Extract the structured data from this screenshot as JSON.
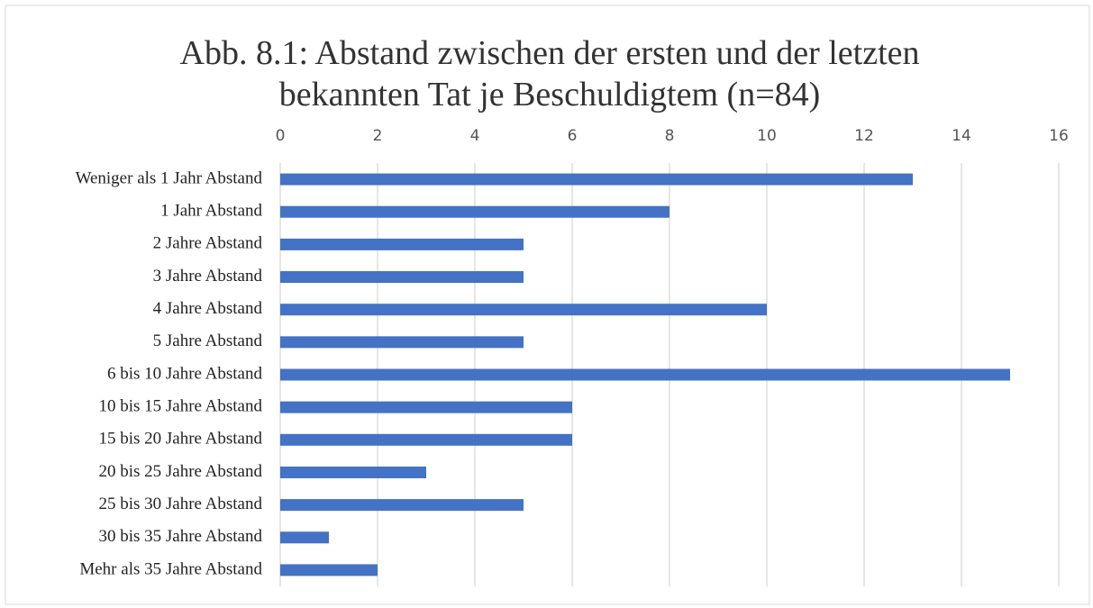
{
  "chart_data": {
    "type": "bar",
    "orientation": "horizontal",
    "title": "Abb. 8.1: Abstand zwischen der ersten und der letzten bekannten Tat je Beschuldigtem (n=84)",
    "categories": [
      "Weniger als 1 Jahr Abstand",
      "1 Jahr Abstand",
      "2 Jahre Abstand",
      "3 Jahre Abstand",
      "4 Jahre Abstand",
      "5 Jahre Abstand",
      "6 bis 10 Jahre Abstand",
      "10 bis 15 Jahre Abstand",
      "15 bis 20 Jahre Abstand",
      "20 bis 25 Jahre Abstand",
      "25 bis 30 Jahre Abstand",
      "30 bis 35 Jahre Abstand",
      "Mehr als 35 Jahre Abstand"
    ],
    "values": [
      13,
      8,
      5,
      5,
      10,
      5,
      15,
      6,
      6,
      3,
      5,
      1,
      2
    ],
    "color": "#4472c4",
    "xlim": [
      0,
      16
    ],
    "xticks": [
      0,
      2,
      4,
      6,
      8,
      10,
      12,
      14,
      16
    ],
    "grid": true
  }
}
